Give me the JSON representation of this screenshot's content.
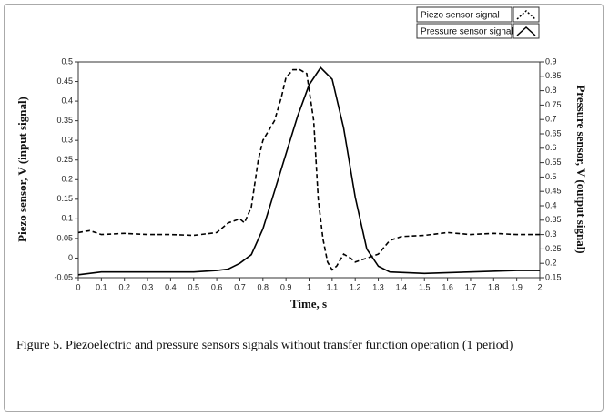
{
  "chart_data": {
    "type": "line",
    "xlabel": "Time, s",
    "ylabel": "Piezo sensor, V (input signal)",
    "y2label": "Pressure sensor, V (output signal)",
    "caption": "Figure 5.  Piezoelectric and pressure sensors signals without transfer function operation (1 period)",
    "xlim": [
      0,
      2
    ],
    "xticks": [
      0,
      0.1,
      0.2,
      0.3,
      0.4,
      0.5,
      0.6,
      0.7,
      0.8,
      0.9,
      1,
      1.1,
      1.2,
      1.3,
      1.4,
      1.5,
      1.6,
      1.7,
      1.8,
      1.9,
      2
    ],
    "ylim": [
      -0.05,
      0.5
    ],
    "yticks": [
      0.5,
      0.45,
      0.4,
      0.35,
      0.3,
      0.25,
      0.2,
      0.15,
      0.1,
      0.05,
      0,
      -0.05
    ],
    "y2lim": [
      0.15,
      0.9
    ],
    "y2ticks": [
      0.9,
      0.85,
      0.8,
      0.75,
      0.7,
      0.65,
      0.6,
      0.55,
      0.5,
      0.45,
      0.4,
      0.35,
      0.3,
      0.25,
      0.2,
      0.15
    ],
    "legend": "upper right",
    "series": [
      {
        "name": "Piezo sensor signal",
        "color": "#000000",
        "dash": "dashed",
        "x": [
          0,
          0.05,
          0.1,
          0.2,
          0.3,
          0.4,
          0.5,
          0.6,
          0.65,
          0.7,
          0.72,
          0.75,
          0.78,
          0.8,
          0.85,
          0.88,
          0.9,
          0.93,
          0.96,
          0.99,
          1.0,
          1.02,
          1.04,
          1.06,
          1.08,
          1.1,
          1.12,
          1.15,
          1.18,
          1.2,
          1.25,
          1.3,
          1.35,
          1.4,
          1.5,
          1.6,
          1.7,
          1.8,
          1.9,
          2.0
        ],
        "values": [
          0.065,
          0.07,
          0.06,
          0.063,
          0.06,
          0.06,
          0.058,
          0.065,
          0.09,
          0.1,
          0.09,
          0.13,
          0.25,
          0.3,
          0.35,
          0.41,
          0.46,
          0.48,
          0.48,
          0.47,
          0.43,
          0.35,
          0.15,
          0.05,
          -0.01,
          -0.03,
          -0.02,
          0.01,
          0.0,
          -0.01,
          0.0,
          0.01,
          0.045,
          0.055,
          0.058,
          0.065,
          0.06,
          0.063,
          0.06,
          0.06
        ]
      },
      {
        "name": "Pressure sensor signal",
        "color": "#000000",
        "dash": "solid",
        "axis": "y2",
        "x": [
          0,
          0.1,
          0.5,
          0.6,
          0.65,
          0.7,
          0.75,
          0.8,
          0.85,
          0.9,
          0.95,
          1.0,
          1.05,
          1.1,
          1.15,
          1.2,
          1.25,
          1.3,
          1.35,
          1.5,
          1.7,
          1.9,
          2.0
        ],
        "values": [
          0.16,
          0.17,
          0.17,
          0.175,
          0.18,
          0.2,
          0.23,
          0.32,
          0.45,
          0.58,
          0.71,
          0.82,
          0.88,
          0.84,
          0.67,
          0.43,
          0.25,
          0.19,
          0.17,
          0.165,
          0.17,
          0.175,
          0.175
        ]
      }
    ]
  }
}
